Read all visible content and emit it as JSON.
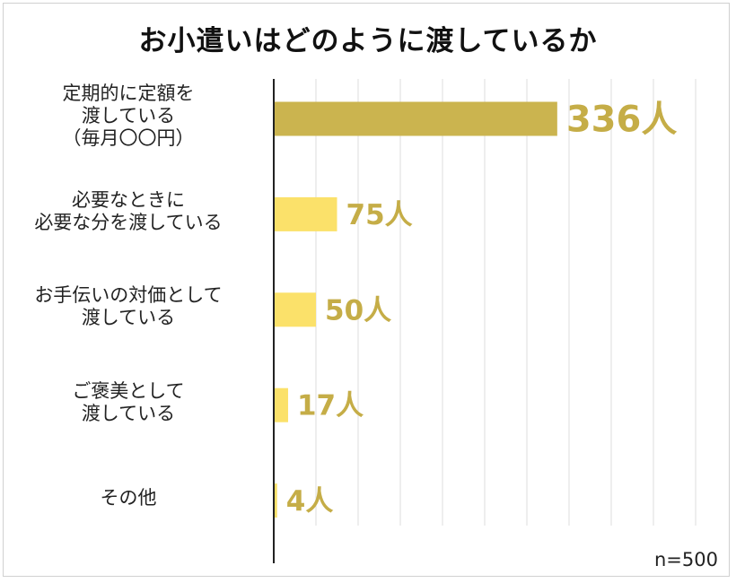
{
  "chart_data": {
    "type": "bar",
    "orientation": "horizontal",
    "title": "お小遣いはどのように渡しているか",
    "categories": [
      "定期的に定額を\n渡している\n（毎月〇〇円）",
      "必要なときに\n必要な分を渡している",
      "お手伝いの対価として\n渡している",
      "ご褒美として\n渡している",
      "その他"
    ],
    "values": [
      336,
      75,
      50,
      17,
      4
    ],
    "value_labels": [
      "336人",
      "75人",
      "50人",
      "17人",
      "4人"
    ],
    "xlim": [
      0,
      500
    ],
    "grid": true,
    "note": "n=500",
    "colors": {
      "highlight_bar": "#cbb44f",
      "bar": "#fbe16a",
      "label_text": "#c5ad47",
      "axis": "#222222",
      "grid": "#dedede"
    }
  }
}
